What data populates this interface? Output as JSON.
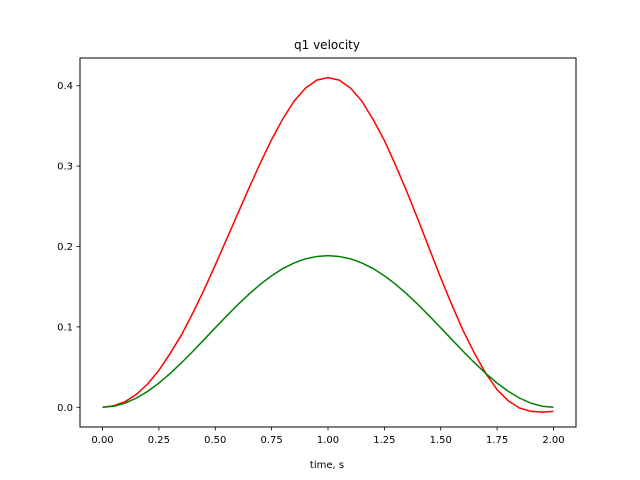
{
  "chart_data": {
    "type": "line",
    "title": "q1 velocity",
    "xlabel": "time, s",
    "ylabel": "",
    "xlim": [
      -0.1,
      2.1
    ],
    "ylim": [
      -0.0245,
      0.4345
    ],
    "x_ticks": [
      0.0,
      0.25,
      0.5,
      0.75,
      1.0,
      1.25,
      1.5,
      1.75,
      2.0
    ],
    "x_tick_labels": [
      "0.00",
      "0.25",
      "0.50",
      "0.75",
      "1.00",
      "1.25",
      "1.50",
      "1.75",
      "2.00"
    ],
    "y_ticks": [
      0.0,
      0.1,
      0.2,
      0.3,
      0.4
    ],
    "y_tick_labels": [
      "0.0",
      "0.1",
      "0.2",
      "0.3",
      "0.4"
    ],
    "grid": false,
    "legend": "none",
    "series": [
      {
        "color": "#ff0000",
        "x": [
          0.0,
          0.05,
          0.1,
          0.15,
          0.2,
          0.25,
          0.3,
          0.35,
          0.4,
          0.45,
          0.5,
          0.55,
          0.6,
          0.65,
          0.7,
          0.75,
          0.8,
          0.85,
          0.9,
          0.95,
          1.0,
          1.05,
          1.1,
          1.15,
          1.2,
          1.25,
          1.3,
          1.35,
          1.4,
          1.45,
          1.5,
          1.55,
          1.6,
          1.65,
          1.7,
          1.75,
          1.8,
          1.85,
          1.9,
          1.95,
          2.0
        ],
        "values": [
          0.0,
          0.002,
          0.007,
          0.016,
          0.029,
          0.046,
          0.067,
          0.09,
          0.117,
          0.146,
          0.177,
          0.209,
          0.241,
          0.273,
          0.304,
          0.333,
          0.359,
          0.381,
          0.397,
          0.407,
          0.41,
          0.407,
          0.397,
          0.381,
          0.358,
          0.332,
          0.301,
          0.268,
          0.233,
          0.197,
          0.161,
          0.127,
          0.095,
          0.067,
          0.042,
          0.022,
          0.008,
          -0.001,
          -0.005,
          -0.006,
          -0.005
        ]
      },
      {
        "color": "#008000",
        "x": [
          0.0,
          0.05,
          0.1,
          0.15,
          0.2,
          0.25,
          0.3,
          0.35,
          0.4,
          0.45,
          0.5,
          0.55,
          0.6,
          0.65,
          0.7,
          0.75,
          0.8,
          0.85,
          0.9,
          0.95,
          1.0,
          1.05,
          1.1,
          1.15,
          1.2,
          1.25,
          1.3,
          1.35,
          1.4,
          1.45,
          1.5,
          1.55,
          1.6,
          1.65,
          1.7,
          1.75,
          1.8,
          1.85,
          1.9,
          1.95,
          2.0
        ],
        "values": [
          0.0,
          0.0013,
          0.0051,
          0.0114,
          0.0198,
          0.0301,
          0.0421,
          0.0553,
          0.0694,
          0.0841,
          0.0989,
          0.1135,
          0.1276,
          0.1409,
          0.153,
          0.1636,
          0.1726,
          0.1796,
          0.1847,
          0.1876,
          0.1886,
          0.1876,
          0.1847,
          0.1796,
          0.1726,
          0.1636,
          0.153,
          0.1409,
          0.1276,
          0.1135,
          0.0989,
          0.0841,
          0.0694,
          0.0553,
          0.0421,
          0.0301,
          0.0198,
          0.0114,
          0.0051,
          0.0013,
          0.0
        ]
      }
    ]
  }
}
